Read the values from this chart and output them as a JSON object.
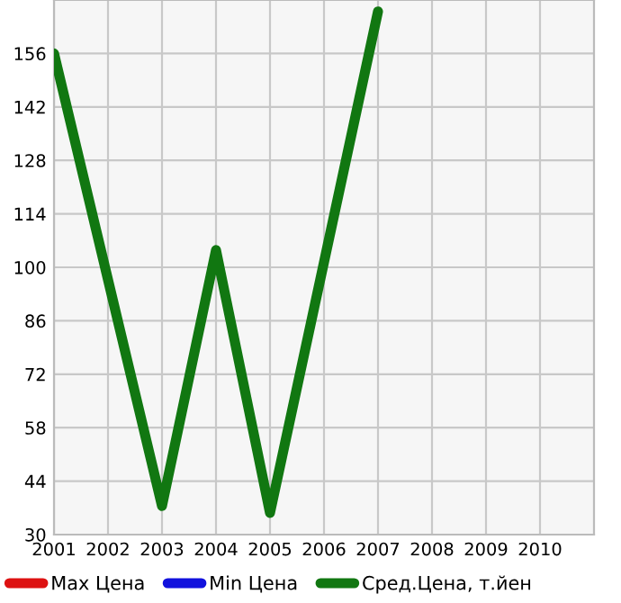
{
  "chart_data": {
    "type": "line",
    "series": [
      {
        "name": "Max Цена",
        "color": "#dd1111"
      },
      {
        "name": "Min Цена",
        "color": "#1111dd"
      },
      {
        "name": "Сред.Цена, т.йен",
        "color": "#117711",
        "x": [
          2001,
          2003,
          2004,
          2005,
          2007
        ],
        "values": [
          156,
          37.5,
          104.5,
          35.7,
          167
        ]
      }
    ],
    "xlim": [
      2001,
      2011
    ],
    "xticks": [
      2001,
      2002,
      2003,
      2004,
      2005,
      2006,
      2007,
      2008,
      2009,
      2010
    ],
    "ylim": [
      30,
      170
    ],
    "yticks": [
      30,
      44,
      58,
      72,
      86,
      100,
      114,
      128,
      142,
      156
    ],
    "grid": true,
    "legend": "bottom",
    "marker": "none",
    "line_style": "solid"
  }
}
